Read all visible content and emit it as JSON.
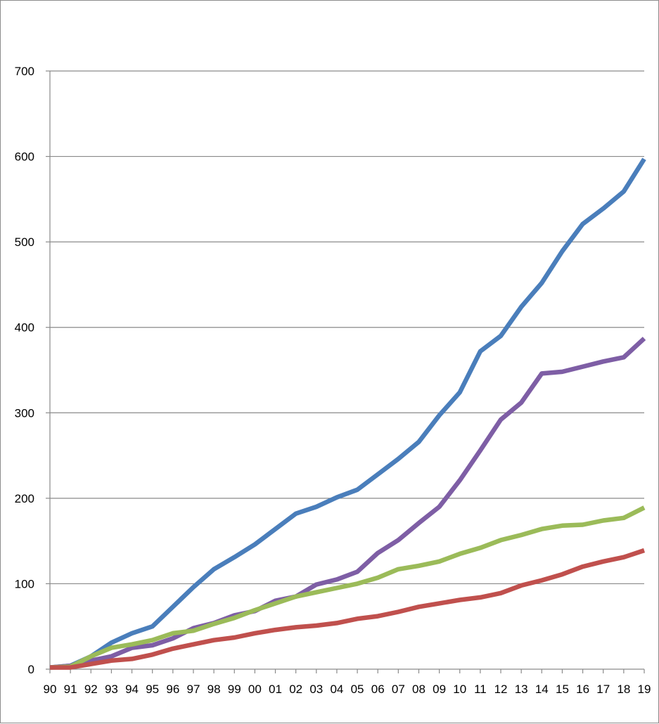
{
  "chart_data": {
    "type": "line",
    "title": "",
    "xlabel": "",
    "ylabel": "",
    "ylim": [
      0,
      700
    ],
    "y_ticks": [
      0,
      100,
      200,
      300,
      400,
      500,
      600,
      700
    ],
    "grid": "horizontal",
    "legend": "none",
    "categories": [
      "90",
      "91",
      "92",
      "93",
      "94",
      "95",
      "96",
      "97",
      "98",
      "99",
      "00",
      "01",
      "02",
      "03",
      "04",
      "05",
      "06",
      "07",
      "08",
      "09",
      "10",
      "11",
      "12",
      "13",
      "14",
      "15",
      "16",
      "17",
      "18",
      "19"
    ],
    "series": [
      {
        "color": "#4a7ebb",
        "values": [
          2,
          4,
          15,
          31,
          42,
          50,
          73,
          96,
          117,
          131,
          146,
          164,
          182,
          190,
          201,
          210,
          228,
          246,
          266,
          297,
          324,
          372,
          390,
          424,
          452,
          489,
          521,
          539,
          559,
          597
        ]
      },
      {
        "color": "#7e5ea5",
        "values": [
          2,
          4,
          10,
          15,
          25,
          28,
          36,
          48,
          54,
          63,
          68,
          80,
          85,
          99,
          105,
          114,
          136,
          151,
          171,
          190,
          221,
          256,
          292,
          312,
          346,
          348,
          354,
          360,
          365,
          387
        ]
      },
      {
        "color": "#9bbb59",
        "values": [
          2,
          3,
          15,
          25,
          29,
          34,
          42,
          45,
          53,
          60,
          69,
          77,
          85,
          90,
          95,
          100,
          107,
          117,
          121,
          126,
          135,
          142,
          151,
          157,
          164,
          168,
          169,
          174,
          177,
          189
        ]
      },
      {
        "color": "#c0504d",
        "values": [
          2,
          2,
          6,
          10,
          12,
          17,
          24,
          29,
          34,
          37,
          42,
          46,
          49,
          51,
          54,
          59,
          62,
          67,
          73,
          77,
          81,
          84,
          89,
          98,
          104,
          111,
          120,
          126,
          131,
          139
        ]
      }
    ]
  }
}
